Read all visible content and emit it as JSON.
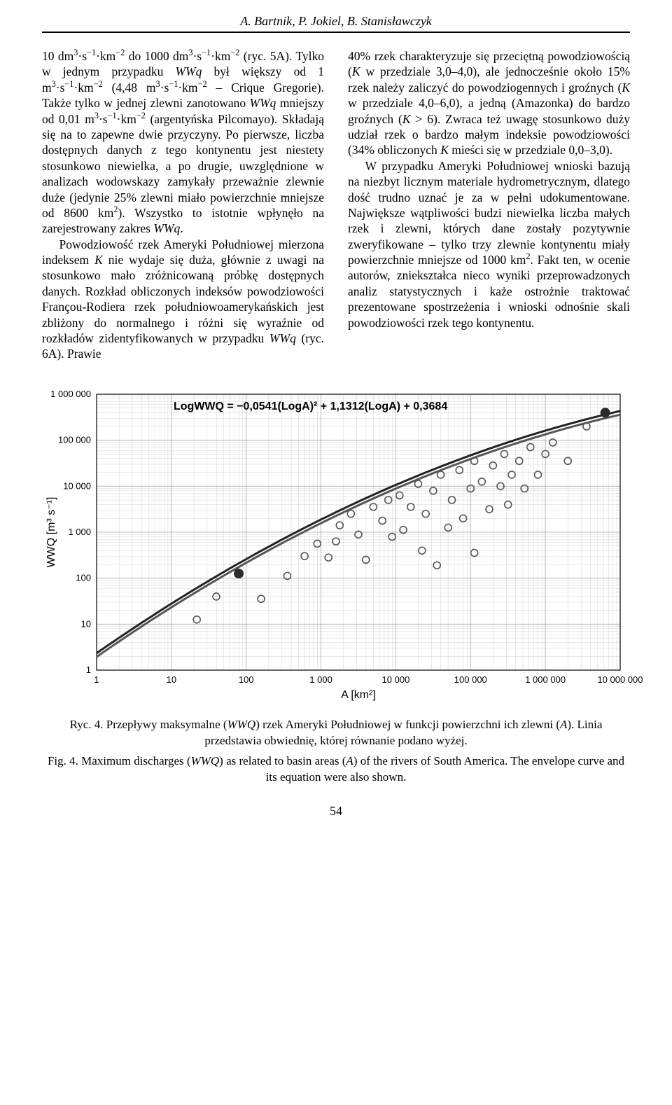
{
  "header": {
    "authors": "A. Bartnik, P. Jokiel, B. Stanisławczyk"
  },
  "body": {
    "left": {
      "p1_html": "10 dm<sup>3</sup>·s<sup>−1</sup>·km<sup>−2</sup> do 1000 dm<sup>3</sup>·s<sup>−1</sup>·km<sup>−2</sup> (ryc. 5A). Tylko w jednym przypadku <span class='ital'>WWq</span> był większy od 1 m<sup>3</sup>·s<sup>−1</sup>·km<sup>−2</sup> (4,48 m<sup>3</sup>·s<sup>−1</sup>·km<sup>−2</sup> – Crique Gregorie). Także tylko w jednej zlewni zanotowano <span class='ital'>WWq</span> mniejszy od 0,01 m<sup>3</sup>·s<sup>−1</sup>·km<sup>−2</sup> (argentyńska Pilcomayo). Składają się na to zapewne dwie przyczyny. Po pierwsze, liczba dostępnych danych z tego kontynentu jest niestety stosunkowo niewielka, a po drugie, uwzględnione w analizach wodowskazy zamykały przeważnie zlewnie duże (jedynie 25% zlewni miało powierzchnie mniejsze od 8600 km<sup>2</sup>). Wszystko to istotnie wpłynęło na zarejestrowany zakres <span class='ital'>WWq</span>.",
      "p2_html": "Powodziowość rzek Ameryki Południowej mierzona indeksem <span class='ital'>K</span> nie wydaje się duża, głównie z uwagi na stosunkowo mało zróżnicowaną próbkę dostępnych danych. Rozkład obliczonych indeksów powodziowości Françou-Rodiera rzek południowoamerykańskich jest zbliżony do normalnego i różni się wyraźnie od rozkładów zidentyfikowanych w przypadku <span class='ital'>WWq</span> (ryc. 6A). Prawie"
    },
    "right": {
      "p1_html": "40% rzek charakteryzuje się przeciętną powodziowością (<span class='ital'>K</span> w przedziale 3,0–4,0), ale jednocześnie około 15% rzek należy zaliczyć do powodziogennych i groźnych (<span class='ital'>K</span> w przedziale 4,0–6,0), a jedną (Amazonka) do bardzo groźnych (<span class='ital'>K</span> &gt; 6). Zwraca też uwagę stosunkowo duży udział rzek o bardzo małym indeksie powodziowości (34% obliczonych <span class='ital'>K</span> mieści się w przedziale 0,0–3,0).",
      "p2_html": "W przypadku Ameryki Południowej wnioski bazują na niezbyt licznym materiale hydrometrycznym, dlatego dość trudno uznać je za w pełni udokumentowane. Największe wątpliwości budzi niewielka liczba małych rzek i zlewni, których dane zostały pozytywnie zweryfikowane – tylko trzy zlewnie kontynentu miały powierzchnie mniejsze od 1000 km<sup>2</sup>. Fakt ten, w ocenie autorów, zniekształca nieco wyniki przeprowadzonych analiz statystycznych i każe ostrożnie traktować prezentowane spostrzeżenia i wnioski odnośnie skali powodziowości rzek tego kontynentu."
    }
  },
  "figure": {
    "equation": "LogWWQ = −0,0541(LogA)² + 1,1312(LogA) + 0,3684",
    "x_label": "A [km²]",
    "y_label": "WWQ [m³ s⁻¹]",
    "x_min_exp": 0,
    "x_max_exp": 7,
    "y_min_exp": 0,
    "y_max_exp": 6,
    "x_ticks": [
      "1",
      "10",
      "100",
      "1 000",
      "10 000",
      "100 000",
      "1 000 000",
      "10 000 000"
    ],
    "y_ticks": [
      "1",
      "10",
      "100",
      "1 000",
      "10 000",
      "100 000",
      "1 000 000"
    ],
    "colors": {
      "open_stroke": "#555555",
      "filled": "#2a2a2a",
      "curveA": "#222222",
      "curveB": "#555555",
      "grid": "#666666",
      "axis": "#000000",
      "background": "#ffffff",
      "text": "#000000"
    },
    "stroke_widths": {
      "curve": 3,
      "grid": 0.5,
      "axis": 1.2,
      "marker": 1.6
    },
    "marker_radius": 5,
    "font_sizes": {
      "axis_label": 16,
      "tick": 13,
      "equation": 16
    },
    "open_points": [
      [
        1.34,
        1.1
      ],
      [
        1.6,
        1.6
      ],
      [
        2.2,
        1.55
      ],
      [
        2.55,
        2.05
      ],
      [
        2.78,
        2.48
      ],
      [
        2.95,
        2.75
      ],
      [
        3.1,
        2.45
      ],
      [
        3.2,
        2.8
      ],
      [
        3.25,
        3.15
      ],
      [
        3.4,
        3.4
      ],
      [
        3.5,
        2.95
      ],
      [
        3.6,
        2.4
      ],
      [
        3.7,
        3.55
      ],
      [
        3.82,
        3.25
      ],
      [
        3.9,
        3.7
      ],
      [
        3.95,
        2.9
      ],
      [
        4.05,
        3.8
      ],
      [
        4.1,
        3.05
      ],
      [
        4.2,
        3.55
      ],
      [
        4.3,
        4.05
      ],
      [
        4.35,
        2.6
      ],
      [
        4.4,
        3.4
      ],
      [
        4.5,
        3.9
      ],
      [
        4.55,
        2.28
      ],
      [
        4.6,
        4.25
      ],
      [
        4.7,
        3.1
      ],
      [
        4.75,
        3.7
      ],
      [
        4.85,
        4.35
      ],
      [
        4.9,
        3.3
      ],
      [
        5.0,
        3.95
      ],
      [
        5.05,
        4.55
      ],
      [
        5.05,
        2.55
      ],
      [
        5.15,
        4.1
      ],
      [
        5.25,
        3.5
      ],
      [
        5.3,
        4.45
      ],
      [
        5.4,
        4.0
      ],
      [
        5.45,
        4.7
      ],
      [
        5.5,
        3.6
      ],
      [
        5.55,
        4.25
      ],
      [
        5.65,
        4.55
      ],
      [
        5.72,
        3.95
      ],
      [
        5.8,
        4.85
      ],
      [
        5.9,
        4.25
      ],
      [
        6.0,
        4.7
      ],
      [
        6.1,
        4.95
      ],
      [
        6.3,
        4.55
      ],
      [
        6.55,
        5.3
      ]
    ],
    "filled_points": [
      [
        1.9,
        2.1
      ],
      [
        6.8,
        5.6
      ]
    ]
  },
  "caption": {
    "pl_html": "Ryc. 4. Przepływy maksymalne (<span class='ital'>WWQ</span>) rzek Ameryki Południowej w funkcji powierzchni ich zlewni (<span class='ital'>A</span>). Linia przedstawia obwiednię, której równanie podano wyżej.",
    "en_html": "Fig. 4. Maximum discharges (<span class='ital'>WWQ</span>) as related to basin areas (<span class='ital'>A</span>) of the rivers of South America. The envelope curve and its equation were also shown."
  },
  "page_number": "54"
}
